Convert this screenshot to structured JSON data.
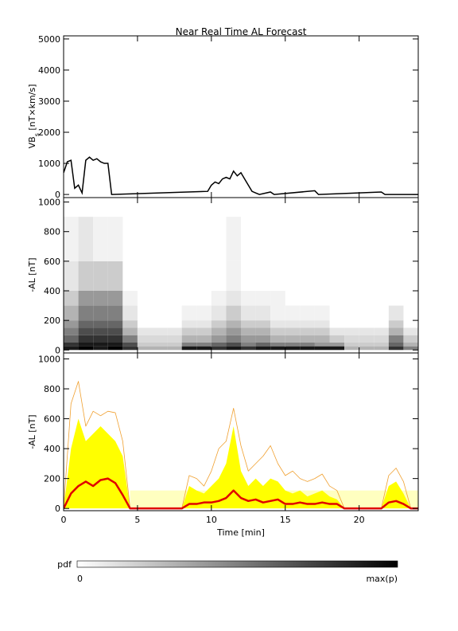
{
  "chart_data": [
    {
      "type": "line",
      "title": "Near Real Time AL Forecast",
      "y_label": "VB",
      "y_label_sub": "s",
      "y_label_rest": " [nT×km/s]",
      "xlim": [
        0,
        24
      ],
      "xticks": [
        0,
        5,
        10,
        15,
        20
      ],
      "ylim": [
        -100,
        5100
      ],
      "yticks": [
        0,
        1000,
        2000,
        3000,
        4000,
        5000
      ],
      "color": "#000000",
      "x": [
        0,
        0.25,
        0.5,
        0.75,
        1,
        1.25,
        1.5,
        1.75,
        2,
        2.25,
        2.5,
        2.75,
        3,
        3.25,
        9.75,
        10,
        10.25,
        10.5,
        10.75,
        11,
        11.25,
        11.5,
        11.75,
        12,
        12.25,
        12.5,
        12.75,
        13,
        13.25,
        14,
        14.25,
        17,
        17.25,
        21.5,
        21.75,
        24
      ],
      "values": [
        700,
        1050,
        1100,
        200,
        300,
        50,
        1100,
        1200,
        1100,
        1150,
        1050,
        1000,
        1000,
        0,
        100,
        300,
        400,
        350,
        500,
        550,
        500,
        750,
        600,
        700,
        500,
        300,
        100,
        50,
        0,
        80,
        0,
        120,
        0,
        80,
        0,
        0
      ]
    },
    {
      "type": "heatmap",
      "y_label": "-AL [nT]",
      "xlim": [
        0,
        24
      ],
      "xticks": [
        0,
        5,
        10,
        15,
        20
      ],
      "ylim": [
        -20,
        1030
      ],
      "yticks": [
        0,
        200,
        400,
        600,
        800,
        1000
      ],
      "x_edges": [
        0,
        1,
        2,
        3,
        4,
        5,
        6,
        7,
        8,
        9,
        10,
        11,
        12,
        13,
        14,
        15,
        16,
        17,
        18,
        19,
        20,
        21,
        22,
        23,
        24
      ],
      "y_edges": [
        0,
        25,
        50,
        100,
        150,
        200,
        300,
        400,
        600,
        900
      ],
      "z": [
        [
          0.9,
          1,
          0.9,
          1,
          0.8,
          0.3,
          0.3,
          0.3,
          0.9,
          0.9,
          0.8,
          0.9,
          0.8,
          0.9,
          0.9,
          0.9,
          0.9,
          0.9,
          0.9,
          0.3,
          0.3,
          0.3,
          0.8,
          0.5
        ],
        [
          0.8,
          0.9,
          0.9,
          0.9,
          0.7,
          0.2,
          0.2,
          0.2,
          0.5,
          0.5,
          0.6,
          0.7,
          0.5,
          0.6,
          0.5,
          0.5,
          0.5,
          0.4,
          0.4,
          0.2,
          0.2,
          0.2,
          0.6,
          0.3
        ],
        [
          0.6,
          0.8,
          0.8,
          0.8,
          0.5,
          0.15,
          0.15,
          0.15,
          0.3,
          0.3,
          0.4,
          0.5,
          0.4,
          0.4,
          0.3,
          0.3,
          0.3,
          0.3,
          0.2,
          0.15,
          0.15,
          0.15,
          0.5,
          0.2
        ],
        [
          0.5,
          0.7,
          0.7,
          0.7,
          0.3,
          0.1,
          0.1,
          0.1,
          0.2,
          0.2,
          0.3,
          0.4,
          0.3,
          0.3,
          0.2,
          0.2,
          0.2,
          0.2,
          0.1,
          0.1,
          0.1,
          0.1,
          0.3,
          0.1
        ],
        [
          0.4,
          0.6,
          0.6,
          0.6,
          0.2,
          0,
          0,
          0,
          0.1,
          0.1,
          0.2,
          0.3,
          0.2,
          0.2,
          0.1,
          0.1,
          0.1,
          0.1,
          0,
          0,
          0,
          0,
          0.2,
          0
        ],
        [
          0.3,
          0.5,
          0.5,
          0.5,
          0.1,
          0,
          0,
          0,
          0.05,
          0.05,
          0.1,
          0.2,
          0.1,
          0.1,
          0.05,
          0.05,
          0.05,
          0.05,
          0,
          0,
          0,
          0,
          0.1,
          0
        ],
        [
          0.2,
          0.4,
          0.4,
          0.4,
          0.05,
          0,
          0,
          0,
          0,
          0,
          0.05,
          0.1,
          0.05,
          0.05,
          0.05,
          0,
          0,
          0,
          0,
          0,
          0,
          0,
          0,
          0
        ],
        [
          0.1,
          0.2,
          0.2,
          0.2,
          0,
          0,
          0,
          0,
          0,
          0,
          0,
          0.05,
          0,
          0,
          0,
          0,
          0,
          0,
          0,
          0,
          0,
          0,
          0,
          0
        ],
        [
          0.05,
          0.1,
          0.05,
          0.05,
          0,
          0,
          0,
          0,
          0,
          0,
          0,
          0.05,
          0,
          0,
          0,
          0,
          0,
          0,
          0,
          0,
          0,
          0,
          0,
          0
        ]
      ],
      "colorbar_label": "pdf",
      "zlim": [
        0,
        1
      ],
      "zticks": [
        0,
        {
          "value": 1,
          "label": "max(p)"
        }
      ]
    },
    {
      "type": "band",
      "y_label": "-AL [nT]",
      "x_label": "Time [min]",
      "xlim": [
        0,
        24
      ],
      "xticks": [
        0,
        5,
        10,
        15,
        20
      ],
      "ylim": [
        -15,
        1040
      ],
      "yticks": [
        0,
        200,
        400,
        600,
        800,
        1000
      ],
      "x": [
        0,
        0.5,
        1,
        1.5,
        2,
        2.5,
        3,
        3.5,
        4,
        4.5,
        5,
        5.5,
        6,
        6.5,
        7,
        7.5,
        8,
        8.5,
        9,
        9.5,
        10,
        10.5,
        11,
        11.5,
        12,
        12.5,
        13,
        13.5,
        14,
        14.5,
        15,
        15.5,
        16,
        16.5,
        17,
        17.5,
        18,
        18.5,
        19,
        19.5,
        20,
        20.5,
        21,
        21.5,
        22,
        22.5,
        23,
        23.5,
        24
      ],
      "series": [
        {
          "style": "area",
          "color": "#ffffc0",
          "values": [
            null,
            null,
            null,
            null,
            null,
            null,
            null,
            null,
            null,
            120,
            120,
            120,
            120,
            120,
            120,
            120,
            120,
            120,
            120,
            120,
            120,
            120,
            120,
            120,
            120,
            120,
            120,
            120,
            120,
            120,
            120,
            120,
            120,
            120,
            120,
            120,
            120,
            120,
            120,
            120,
            120,
            120,
            120,
            120,
            120,
            120,
            120,
            120,
            120
          ]
        },
        {
          "style": "area",
          "color": "#ffff00",
          "values": [
            0,
            400,
            600,
            450,
            500,
            550,
            500,
            450,
            350,
            0,
            0,
            0,
            0,
            0,
            0,
            0,
            0,
            150,
            120,
            100,
            150,
            200,
            300,
            550,
            250,
            150,
            200,
            150,
            200,
            180,
            120,
            100,
            120,
            80,
            100,
            120,
            80,
            60,
            0,
            0,
            0,
            0,
            0,
            0,
            150,
            180,
            100,
            0,
            0
          ]
        },
        {
          "style": "line",
          "width": 0.8,
          "color": "#f0a030",
          "values": [
            0,
            700,
            850,
            550,
            650,
            620,
            650,
            640,
            450,
            0,
            0,
            0,
            0,
            0,
            0,
            0,
            0,
            220,
            200,
            150,
            250,
            400,
            450,
            670,
            420,
            250,
            300,
            350,
            420,
            300,
            220,
            250,
            200,
            180,
            200,
            230,
            150,
            120,
            0,
            0,
            0,
            0,
            0,
            0,
            220,
            270,
            180,
            0,
            0
          ]
        },
        {
          "style": "line",
          "width": 2.5,
          "color": "#e00000",
          "values": [
            0,
            100,
            150,
            180,
            150,
            190,
            200,
            170,
            90,
            0,
            0,
            0,
            0,
            0,
            0,
            0,
            0,
            30,
            30,
            40,
            40,
            50,
            70,
            120,
            70,
            50,
            60,
            40,
            50,
            60,
            30,
            30,
            40,
            30,
            30,
            40,
            30,
            30,
            0,
            0,
            0,
            0,
            0,
            0,
            40,
            50,
            30,
            0,
            0
          ]
        }
      ]
    }
  ]
}
